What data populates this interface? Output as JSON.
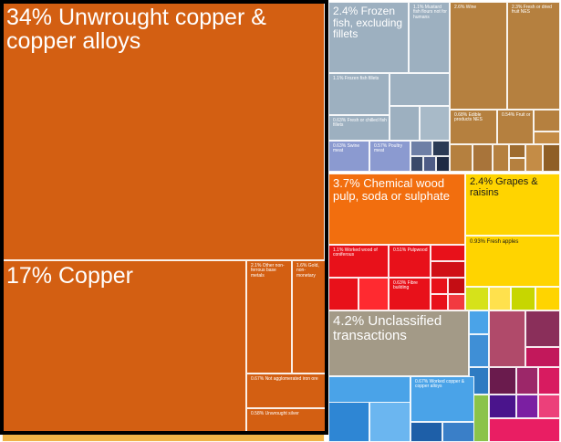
{
  "chart_data": {
    "type": "treemap",
    "title": "",
    "labeled_cells": [
      {
        "label": "34% Unwrought copper & copper alloys",
        "value": 34,
        "color": "#d35f12"
      },
      {
        "label": "17% Copper",
        "value": 17,
        "color": "#d35f12"
      },
      {
        "label": "2.1% Other non-ferrous base metals",
        "value": 2.1,
        "color": "#d35f12"
      },
      {
        "label": "1.6% Gold, non-monetary",
        "value": 1.6,
        "color": "#d35f12"
      },
      {
        "label": "0.67% Not agglomerated iron ore",
        "value": 0.67,
        "color": "#d35f12"
      },
      {
        "label": "0.58% Unwrought silver",
        "value": 0.58,
        "color": "#d35f12"
      },
      {
        "label": "2.4% Frozen fish, excluding fillets",
        "value": 2.4,
        "color": "#9db0c0"
      },
      {
        "label": "1.1% Mustard fish flours not for humans",
        "value": 1.1,
        "color": "#9db0c0"
      },
      {
        "label": "1.1% Frozen fish fillets",
        "value": 1.1,
        "color": "#9db0c0"
      },
      {
        "label": "0.63% Fresh or chilled fish fillets",
        "value": 0.63,
        "color": "#9db0c0"
      },
      {
        "label": "0.63% Swine meat",
        "value": 0.63,
        "color": "#8b9ad0"
      },
      {
        "label": "0.57% Poultry meat",
        "value": 0.57,
        "color": "#8b9ad0"
      },
      {
        "label": "2.6% Wine",
        "value": 2.6,
        "color": "#b5803f"
      },
      {
        "label": "2.3% Fresh or dried fruit NES",
        "value": 2.3,
        "color": "#b5803f"
      },
      {
        "label": "0.68% Edible products NES",
        "value": 0.68,
        "color": "#b5803f"
      },
      {
        "label": "0.54% Fruit or",
        "value": 0.54,
        "color": "#b5803f"
      },
      {
        "label": "3.7% Chemical wood pulp, soda or sulphate",
        "value": 3.7,
        "color": "#f26e0e"
      },
      {
        "label": "1.1% Worked wood of coniferous",
        "value": 1.1,
        "color": "#e8111a"
      },
      {
        "label": "0.51% Pulpwood",
        "value": 0.51,
        "color": "#e8111a"
      },
      {
        "label": "0.63% Fibre building",
        "value": 0.63,
        "color": "#e8111a"
      },
      {
        "label": "2.4% Grapes & raisins",
        "value": 2.4,
        "color": "#ffd400"
      },
      {
        "label": "0.93% Fresh apples",
        "value": 0.93,
        "color": "#ffd400"
      },
      {
        "label": "4.2% Unclassified transactions",
        "value": 4.2,
        "color": "#a39a87"
      },
      {
        "label": "0.67% Worked copper & copper alloys",
        "value": 0.67,
        "color": "#4aa3e8"
      }
    ]
  }
}
